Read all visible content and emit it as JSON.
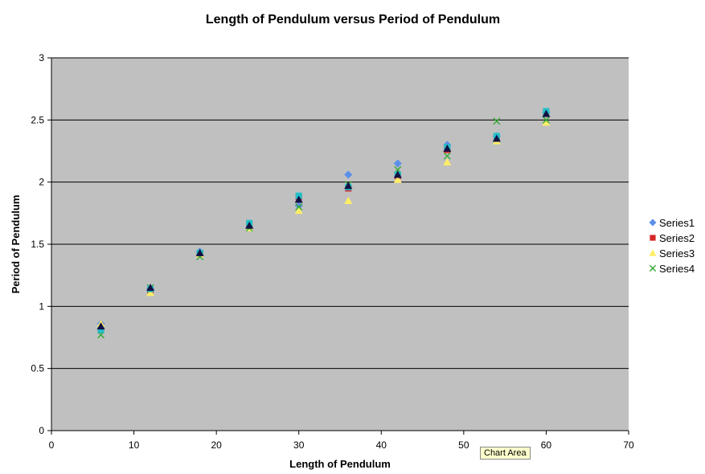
{
  "chart_data": {
    "type": "scatter",
    "title": "Length of Pendulum versus Period of Pendulum",
    "xlabel": "Length of Pendulum",
    "ylabel": "Period of Pendulum",
    "xlim": [
      0,
      70
    ],
    "ylim": [
      0,
      3
    ],
    "x_ticks": [
      "0",
      "10",
      "20",
      "30",
      "40",
      "50",
      "60",
      "70"
    ],
    "y_ticks": [
      "0",
      "0.5",
      "1",
      "1.5",
      "2",
      "2.5",
      "3"
    ],
    "grid": "horizontal",
    "plot_background": "#c0c0c0",
    "legend_position": "right",
    "series": [
      {
        "name": "Series1",
        "marker": "diamond",
        "color": "#5b8fe8",
        "points": [
          [
            6,
            0.86
          ],
          [
            12,
            1.14
          ],
          [
            18,
            1.44
          ],
          [
            24,
            1.64
          ],
          [
            30,
            1.81
          ],
          [
            36,
            2.06
          ],
          [
            42,
            2.15
          ],
          [
            48,
            2.3
          ],
          [
            54,
            2.37
          ],
          [
            60,
            2.56
          ]
        ]
      },
      {
        "name": "Series2",
        "marker": "square",
        "color": "#d62728",
        "points": [
          [
            6,
            0.81
          ],
          [
            12,
            1.13
          ],
          [
            18,
            1.42
          ],
          [
            24,
            1.65
          ],
          [
            30,
            1.88
          ],
          [
            36,
            1.95
          ],
          [
            42,
            2.05
          ],
          [
            48,
            2.26
          ],
          [
            54,
            2.36
          ],
          [
            60,
            2.57
          ]
        ]
      },
      {
        "name": "Series3",
        "marker": "triangle",
        "color": "#ffee66",
        "points": [
          [
            6,
            0.86
          ],
          [
            12,
            1.11
          ],
          [
            18,
            1.42
          ],
          [
            24,
            1.63
          ],
          [
            30,
            1.77
          ],
          [
            36,
            1.85
          ],
          [
            42,
            2.02
          ],
          [
            48,
            2.16
          ],
          [
            54,
            2.33
          ],
          [
            60,
            2.48
          ]
        ]
      },
      {
        "name": "Series4",
        "marker": "x",
        "color": "#33aa33",
        "points": [
          [
            6,
            0.77
          ],
          [
            12,
            1.15
          ],
          [
            18,
            1.4
          ],
          [
            24,
            1.63
          ],
          [
            30,
            1.8
          ],
          [
            36,
            1.98
          ],
          [
            42,
            2.1
          ],
          [
            48,
            2.21
          ],
          [
            54,
            2.49
          ],
          [
            60,
            2.5
          ]
        ]
      },
      {
        "name": "",
        "marker": "square",
        "color": "#22c0c8",
        "points": [
          [
            6,
            0.81
          ],
          [
            12,
            1.14
          ],
          [
            18,
            1.43
          ],
          [
            24,
            1.67
          ],
          [
            30,
            1.89
          ],
          [
            36,
            1.96
          ],
          [
            42,
            2.06
          ],
          [
            48,
            2.28
          ],
          [
            54,
            2.37
          ],
          [
            60,
            2.57
          ]
        ]
      },
      {
        "name": "",
        "marker": "triangle",
        "color": "#111144",
        "points": [
          [
            6,
            0.84
          ],
          [
            12,
            1.15
          ],
          [
            18,
            1.43
          ],
          [
            24,
            1.65
          ],
          [
            30,
            1.86
          ],
          [
            36,
            1.97
          ],
          [
            42,
            2.06
          ],
          [
            48,
            2.27
          ],
          [
            54,
            2.35
          ],
          [
            60,
            2.55
          ]
        ]
      }
    ]
  },
  "tooltip": "Chart Area"
}
